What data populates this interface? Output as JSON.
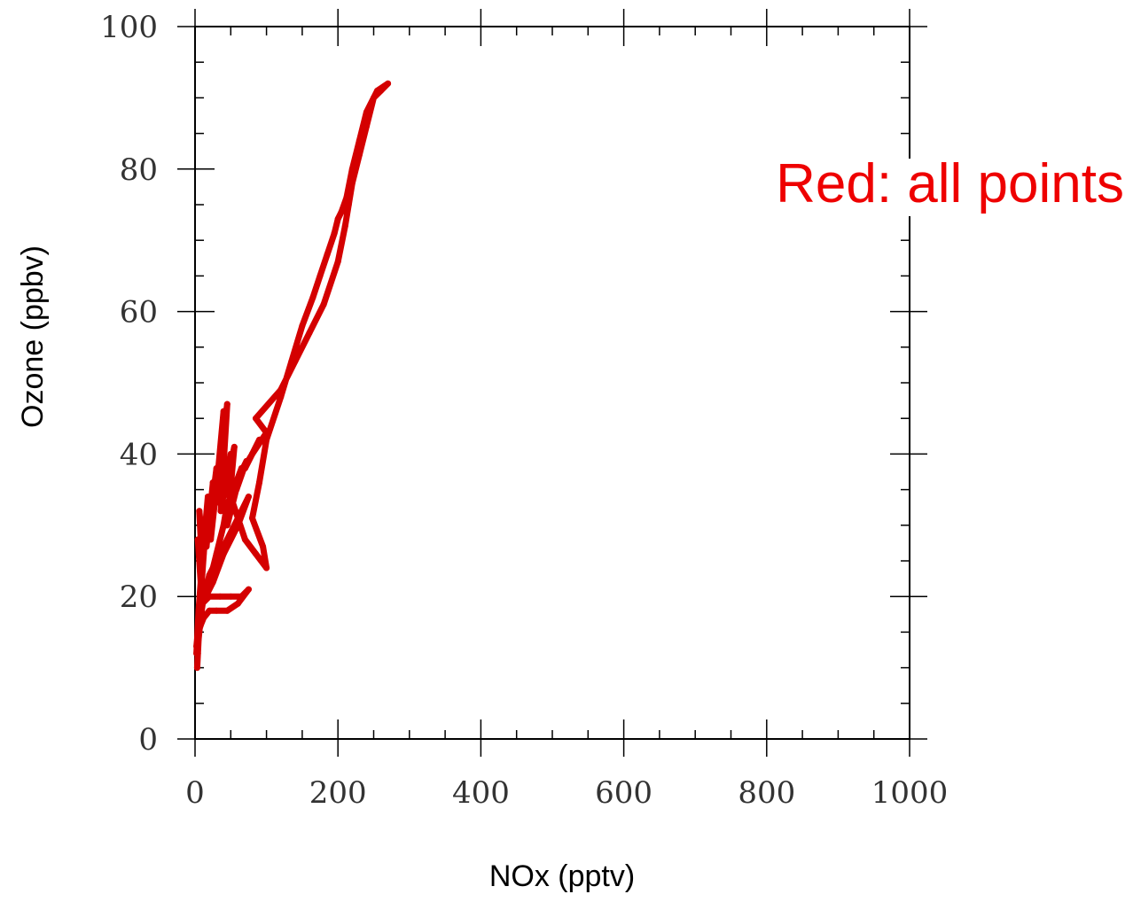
{
  "chart_data": {
    "type": "line",
    "title": "",
    "xlabel": "NOx (pptv)",
    "ylabel": "Ozone (ppbv)",
    "xlim": [
      0,
      1000
    ],
    "ylim": [
      0,
      100
    ],
    "x_ticks": [
      "0",
      "200",
      "400",
      "600",
      "800",
      "1000"
    ],
    "y_ticks": [
      "0",
      "20",
      "40",
      "60",
      "80",
      "100"
    ],
    "grid": false,
    "annotation": "Red: all points",
    "series": [
      {
        "color": "#d40000",
        "x": [
          2,
          5,
          8,
          4,
          10,
          6,
          12,
          8,
          15,
          10,
          18,
          14,
          20,
          16,
          25,
          20,
          30,
          22,
          35,
          28,
          40,
          30,
          45,
          36,
          50,
          40,
          55,
          45,
          60,
          50,
          65,
          58,
          72,
          62,
          80,
          70,
          90,
          80,
          100,
          85,
          120,
          140,
          160,
          180,
          200,
          210,
          215,
          220,
          230,
          240,
          250,
          260,
          270,
          255,
          240,
          230,
          220,
          212,
          205,
          200,
          195,
          185,
          175,
          165,
          150,
          135,
          120,
          100,
          90,
          80,
          95,
          100,
          85,
          70,
          60,
          50,
          45,
          40,
          35,
          30,
          25,
          20,
          15,
          10,
          6,
          4,
          3,
          5,
          8,
          12,
          20,
          30,
          45,
          60,
          75,
          60,
          40,
          25,
          15,
          10,
          20,
          35,
          50,
          65,
          75,
          60,
          45,
          30,
          20,
          12,
          8,
          5,
          3,
          2
        ],
        "y": [
          12,
          18,
          22,
          28,
          24,
          32,
          26,
          20,
          30,
          25,
          34,
          28,
          33,
          27,
          36,
          30,
          38,
          28,
          40,
          33,
          46,
          35,
          47,
          32,
          40,
          34,
          41,
          30,
          36,
          34,
          38,
          35,
          39,
          37,
          40,
          38,
          42,
          40,
          43,
          45,
          49,
          53,
          57,
          61,
          67,
          72,
          75,
          78,
          82,
          86,
          90,
          91,
          92,
          91,
          88,
          84,
          80,
          76,
          74,
          73,
          71,
          68,
          65,
          62,
          58,
          53,
          48,
          42,
          36,
          31,
          27,
          24,
          26,
          28,
          31,
          34,
          33,
          30,
          28,
          26,
          24,
          23,
          21,
          20,
          16,
          12,
          10,
          14,
          17,
          20,
          22,
          25,
          28,
          31,
          34,
          30,
          26,
          22,
          20,
          19,
          20,
          20,
          20,
          20,
          21,
          19,
          18,
          18,
          18,
          17,
          16,
          15,
          14,
          13
        ]
      }
    ]
  }
}
